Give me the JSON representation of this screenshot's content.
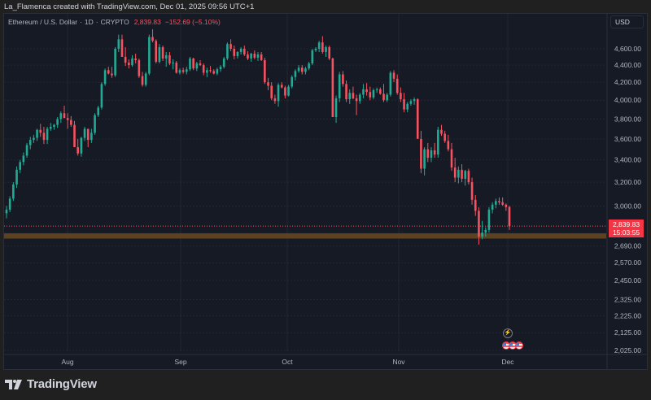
{
  "header": {
    "credit": "La_Flamenca created with TradingView.com, Dec 01, 2025 09:56 UTC+1"
  },
  "legend": {
    "symbol": "Ethereum / U.S. Dollar",
    "interval": "1D",
    "exchange": "CRYPTO",
    "last_price": "2,839.83",
    "change": "−152.69 (−5.10%)"
  },
  "currency_button": "USD",
  "price_tag": {
    "price": "2,839.83",
    "countdown": "15:03:55",
    "color": "#f23645"
  },
  "colors": {
    "up": "#22ab94",
    "down": "#f7525f",
    "band": "#5c4220",
    "grid": "#232733",
    "background": "#161a25"
  },
  "branding": {
    "logo_text": "TradingView"
  },
  "events": {
    "icon": "lightning-event-icon",
    "flags": [
      "us-flag-icon",
      "us-flag-icon",
      "us-flag-icon"
    ]
  },
  "chart_data": {
    "type": "candlestick",
    "title": "Ethereum / U.S. Dollar · 1D · CRYPTO",
    "xlabel": "",
    "ylabel": "USD",
    "scale": "log",
    "grid": true,
    "y_ticks": [
      "4,600.00",
      "4,400.00",
      "4,200.00",
      "4,000.00",
      "3,800.00",
      "3,600.00",
      "3,400.00",
      "3,200.00",
      "3,000.00",
      "2,690.00",
      "2,570.00",
      "2,450.00",
      "2,325.00",
      "2,225.00",
      "2,125.00",
      "2,025.00"
    ],
    "y_tick_values": [
      4600,
      4400,
      4200,
      4000,
      3800,
      3600,
      3400,
      3200,
      3000,
      2690,
      2570,
      2450,
      2325,
      2225,
      2125,
      2025
    ],
    "x_ticks": [
      "Aug",
      "Sep",
      "Oct",
      "Nov",
      "Dec"
    ],
    "x_tick_positions": [
      83,
      222,
      353,
      490,
      624
    ],
    "ylim": [
      1985,
      5000
    ],
    "support_band": {
      "low": 2745,
      "high": 2785
    },
    "current_price": 2839.83,
    "start_date": "2025-07-13",
    "end_date": "2025-12-01",
    "candles": [
      [
        2940,
        3000,
        2900,
        2970
      ],
      [
        2970,
        3080,
        2950,
        3060
      ],
      [
        3060,
        3200,
        3040,
        3180
      ],
      [
        3180,
        3340,
        3150,
        3310
      ],
      [
        3310,
        3400,
        3280,
        3380
      ],
      [
        3380,
        3470,
        3350,
        3440
      ],
      [
        3440,
        3560,
        3420,
        3540
      ],
      [
        3540,
        3620,
        3500,
        3590
      ],
      [
        3590,
        3640,
        3560,
        3610
      ],
      [
        3610,
        3700,
        3580,
        3690
      ],
      [
        3690,
        3750,
        3620,
        3660
      ],
      [
        3660,
        3720,
        3550,
        3590
      ],
      [
        3590,
        3720,
        3550,
        3700
      ],
      [
        3700,
        3760,
        3680,
        3720
      ],
      [
        3720,
        3750,
        3690,
        3740
      ],
      [
        3740,
        3820,
        3710,
        3800
      ],
      [
        3800,
        3880,
        3760,
        3860
      ],
      [
        3860,
        3940,
        3830,
        3810
      ],
      [
        3810,
        3860,
        3700,
        3790
      ],
      [
        3790,
        3830,
        3720,
        3740
      ],
      [
        3740,
        3780,
        3540,
        3520
      ],
      [
        3520,
        3600,
        3440,
        3460
      ],
      [
        3460,
        3620,
        3430,
        3610
      ],
      [
        3610,
        3720,
        3580,
        3700
      ],
      [
        3700,
        3680,
        3520,
        3590
      ],
      [
        3590,
        3700,
        3560,
        3660
      ],
      [
        3660,
        3860,
        3640,
        3840
      ],
      [
        3840,
        3940,
        3820,
        3920
      ],
      [
        3920,
        4200,
        3900,
        4180
      ],
      [
        4180,
        4360,
        4160,
        4340
      ],
      [
        4340,
        4380,
        4290,
        4300
      ],
      [
        4300,
        4380,
        4250,
        4280
      ],
      [
        4280,
        4620,
        4260,
        4600
      ],
      [
        4600,
        4780,
        4560,
        4720
      ],
      [
        4720,
        4780,
        4560,
        4500
      ],
      [
        4500,
        4620,
        4390,
        4430
      ],
      [
        4430,
        4470,
        4360,
        4400
      ],
      [
        4400,
        4520,
        4380,
        4480
      ],
      [
        4480,
        4540,
        4420,
        4460
      ],
      [
        4460,
        4480,
        4250,
        4270
      ],
      [
        4270,
        4320,
        4150,
        4170
      ],
      [
        4170,
        4320,
        4150,
        4300
      ],
      [
        4300,
        4780,
        4280,
        4750
      ],
      [
        4750,
        4850,
        4680,
        4700
      ],
      [
        4700,
        4720,
        4420,
        4440
      ],
      [
        4440,
        4660,
        4420,
        4620
      ],
      [
        4620,
        4640,
        4450,
        4480
      ],
      [
        4480,
        4560,
        4380,
        4520
      ],
      [
        4520,
        4560,
        4400,
        4420
      ],
      [
        4420,
        4470,
        4350,
        4430
      ],
      [
        4430,
        4450,
        4300,
        4310
      ],
      [
        4310,
        4360,
        4290,
        4340
      ],
      [
        4340,
        4370,
        4300,
        4320
      ],
      [
        4320,
        4380,
        4290,
        4350
      ],
      [
        4350,
        4500,
        4330,
        4480
      ],
      [
        4480,
        4490,
        4340,
        4360
      ],
      [
        4360,
        4440,
        4330,
        4420
      ],
      [
        4420,
        4460,
        4390,
        4400
      ],
      [
        4400,
        4420,
        4280,
        4310
      ],
      [
        4310,
        4370,
        4260,
        4340
      ],
      [
        4340,
        4390,
        4310,
        4330
      ],
      [
        4330,
        4350,
        4290,
        4300
      ],
      [
        4300,
        4370,
        4280,
        4350
      ],
      [
        4350,
        4400,
        4320,
        4380
      ],
      [
        4380,
        4500,
        4360,
        4480
      ],
      [
        4480,
        4680,
        4460,
        4660
      ],
      [
        4660,
        4720,
        4570,
        4600
      ],
      [
        4600,
        4640,
        4470,
        4510
      ],
      [
        4510,
        4570,
        4480,
        4560
      ],
      [
        4560,
        4620,
        4530,
        4600
      ],
      [
        4600,
        4640,
        4510,
        4530
      ],
      [
        4530,
        4570,
        4460,
        4480
      ],
      [
        4480,
        4550,
        4440,
        4540
      ],
      [
        4540,
        4580,
        4470,
        4490
      ],
      [
        4490,
        4560,
        4450,
        4530
      ],
      [
        4530,
        4560,
        4450,
        4460
      ],
      [
        4460,
        4490,
        4180,
        4200
      ],
      [
        4200,
        4250,
        4110,
        4160
      ],
      [
        4160,
        4200,
        4000,
        4020
      ],
      [
        4020,
        4060,
        3960,
        3990
      ],
      [
        3990,
        4190,
        3930,
        4170
      ],
      [
        4170,
        4200,
        4130,
        4140
      ],
      [
        4140,
        4160,
        4020,
        4050
      ],
      [
        4050,
        4170,
        4040,
        4150
      ],
      [
        4150,
        4280,
        4130,
        4260
      ],
      [
        4260,
        4350,
        4220,
        4330
      ],
      [
        4330,
        4400,
        4310,
        4370
      ],
      [
        4370,
        4400,
        4290,
        4320
      ],
      [
        4320,
        4380,
        4290,
        4360
      ],
      [
        4360,
        4440,
        4340,
        4420
      ],
      [
        4420,
        4600,
        4400,
        4580
      ],
      [
        4580,
        4620,
        4560,
        4600
      ],
      [
        4600,
        4700,
        4560,
        4680
      ],
      [
        4680,
        4760,
        4540,
        4560
      ],
      [
        4560,
        4640,
        4500,
        4620
      ],
      [
        4620,
        4640,
        4460,
        4480
      ],
      [
        4480,
        4490,
        3850,
        3820
      ],
      [
        3820,
        4050,
        3760,
        4020
      ],
      [
        4020,
        4320,
        3980,
        4290
      ],
      [
        4290,
        4330,
        4150,
        4180
      ],
      [
        4180,
        4220,
        3980,
        4010
      ],
      [
        4010,
        4120,
        3960,
        4080
      ],
      [
        4080,
        4150,
        4010,
        4020
      ],
      [
        4020,
        4060,
        3840,
        3990
      ],
      [
        3990,
        4080,
        3960,
        4060
      ],
      [
        4060,
        4180,
        4020,
        4120
      ],
      [
        4120,
        4190,
        4050,
        4090
      ],
      [
        4090,
        4150,
        4000,
        4030
      ],
      [
        4030,
        4130,
        4010,
        4110
      ],
      [
        4110,
        4140,
        4080,
        4120
      ],
      [
        4120,
        4140,
        4060,
        4070
      ],
      [
        4070,
        4180,
        3980,
        4000
      ],
      [
        4000,
        4080,
        3980,
        4060
      ],
      [
        4060,
        4330,
        4040,
        4310
      ],
      [
        4310,
        4340,
        4200,
        4240
      ],
      [
        4240,
        4290,
        4060,
        4080
      ],
      [
        4080,
        4140,
        3980,
        4010
      ],
      [
        4010,
        4080,
        3870,
        3900
      ],
      [
        3900,
        3980,
        3870,
        3960
      ],
      [
        3960,
        4010,
        3940,
        3990
      ],
      [
        3990,
        4030,
        3950,
        4010
      ],
      [
        4010,
        4020,
        3620,
        3600
      ],
      [
        3600,
        3680,
        3280,
        3320
      ],
      [
        3320,
        3520,
        3260,
        3500
      ],
      [
        3500,
        3560,
        3380,
        3420
      ],
      [
        3420,
        3520,
        3380,
        3490
      ],
      [
        3490,
        3560,
        3420,
        3450
      ],
      [
        3450,
        3720,
        3420,
        3690
      ],
      [
        3690,
        3740,
        3630,
        3650
      ],
      [
        3650,
        3680,
        3560,
        3580
      ],
      [
        3580,
        3640,
        3480,
        3500
      ],
      [
        3500,
        3560,
        3300,
        3330
      ],
      [
        3330,
        3420,
        3200,
        3240
      ],
      [
        3240,
        3340,
        3190,
        3310
      ],
      [
        3310,
        3360,
        3200,
        3230
      ],
      [
        3230,
        3310,
        3170,
        3300
      ],
      [
        3300,
        3320,
        3180,
        3200
      ],
      [
        3200,
        3240,
        3010,
        3050
      ],
      [
        3050,
        3090,
        2920,
        2960
      ],
      [
        2960,
        2990,
        2700,
        2760
      ],
      [
        2760,
        2880,
        2740,
        2790
      ],
      [
        2790,
        2830,
        2760,
        2810
      ],
      [
        2810,
        2990,
        2790,
        2970
      ],
      [
        2970,
        3030,
        2940,
        3010
      ],
      [
        3010,
        3060,
        2980,
        3040
      ],
      [
        3040,
        3070,
        3010,
        3030
      ],
      [
        3030,
        3070,
        3000,
        3010
      ],
      [
        3010,
        3020,
        2960,
        2990
      ],
      [
        2992,
        3000,
        2810,
        2839.83
      ]
    ]
  }
}
